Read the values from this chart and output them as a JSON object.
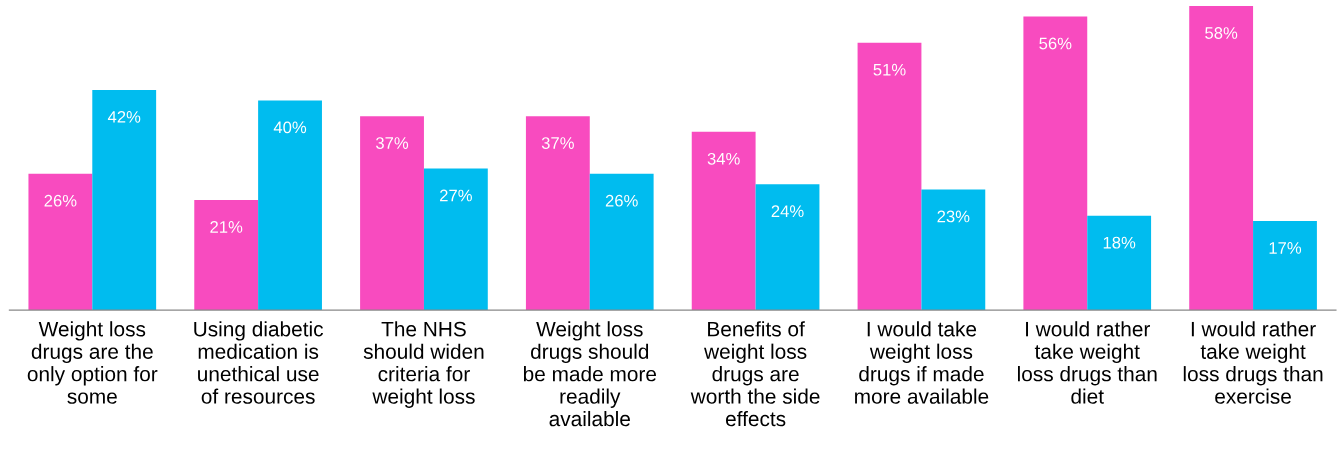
{
  "chart_data": {
    "type": "bar",
    "categories": [
      "Weight loss\ndrugs are the\nonly option for\nsome",
      "Using diabetic\nmedication is\nunethical use\nof resources",
      "The NHS\nshould widen\ncriteria for\nweight loss",
      "Weight loss\ndrugs should\nbe made more\nreadily\navailable",
      "Benefits of\nweight loss\ndrugs are\nworth the side\neffects",
      "I would take\nweight loss\ndrugs if made\nmore available",
      "I would rather\ntake weight\nloss drugs than\ndiet",
      "I would rather\ntake weight\nloss drugs than\nexercise"
    ],
    "series": [
      {
        "color": "#f84bbf",
        "values": [
          26,
          21,
          37,
          37,
          34,
          51,
          56,
          58
        ],
        "value_labels": [
          "26%",
          "21%",
          "37%",
          "37%",
          "34%",
          "51%",
          "56%",
          "58%"
        ]
      },
      {
        "color": "#00bcef",
        "values": [
          42,
          40,
          27,
          26,
          24,
          23,
          18,
          17
        ],
        "value_labels": [
          "42%",
          "40%",
          "27%",
          "26%",
          "24%",
          "23%",
          "18%",
          "17%"
        ]
      }
    ],
    "grid": false,
    "legend": false,
    "tick_labels": "x"
  }
}
